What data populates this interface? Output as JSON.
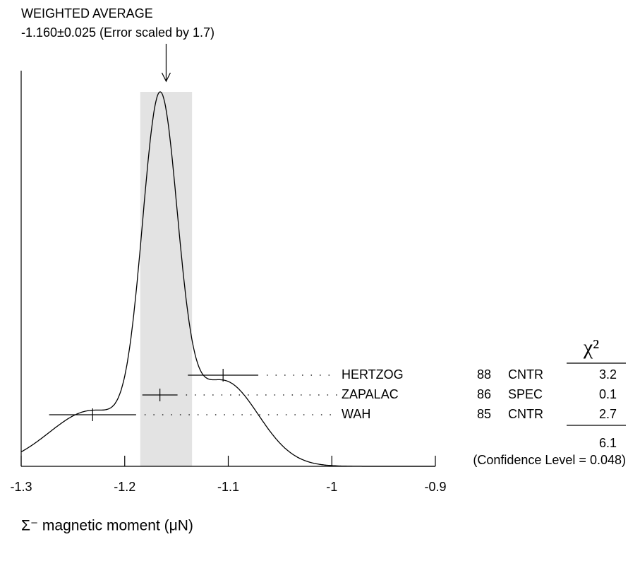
{
  "chart_data": {
    "type": "ideogram",
    "title": "WEIGHTED AVERAGE",
    "average": {
      "value": -1.16,
      "error": 0.025,
      "label": "-1.160±0.025 (Error scaled by 1.7)"
    },
    "x_label": "Σ⁻ magnetic moment (μN)",
    "xlim": [
      -1.3,
      -0.9
    ],
    "xticks": [
      -1.3,
      -1.2,
      -1.1,
      -1,
      -0.9
    ],
    "band_color": "#e3e3e3",
    "chi2_header": "χ²",
    "measurements": {
      "names": [
        "HERTZOG",
        "ZAPALAC",
        "WAH"
      ],
      "years": [
        "88",
        "86",
        "85"
      ],
      "techniques": [
        "CNTR",
        "SPEC",
        "CNTR"
      ],
      "values": [
        -1.105,
        -1.166,
        -1.231
      ],
      "errors": [
        0.034,
        0.017,
        0.042
      ],
      "chi2": [
        3.2,
        0.1,
        2.7
      ]
    },
    "chi2_total": 6.1,
    "confidence_label": "(Confidence Level = 0.048)"
  }
}
